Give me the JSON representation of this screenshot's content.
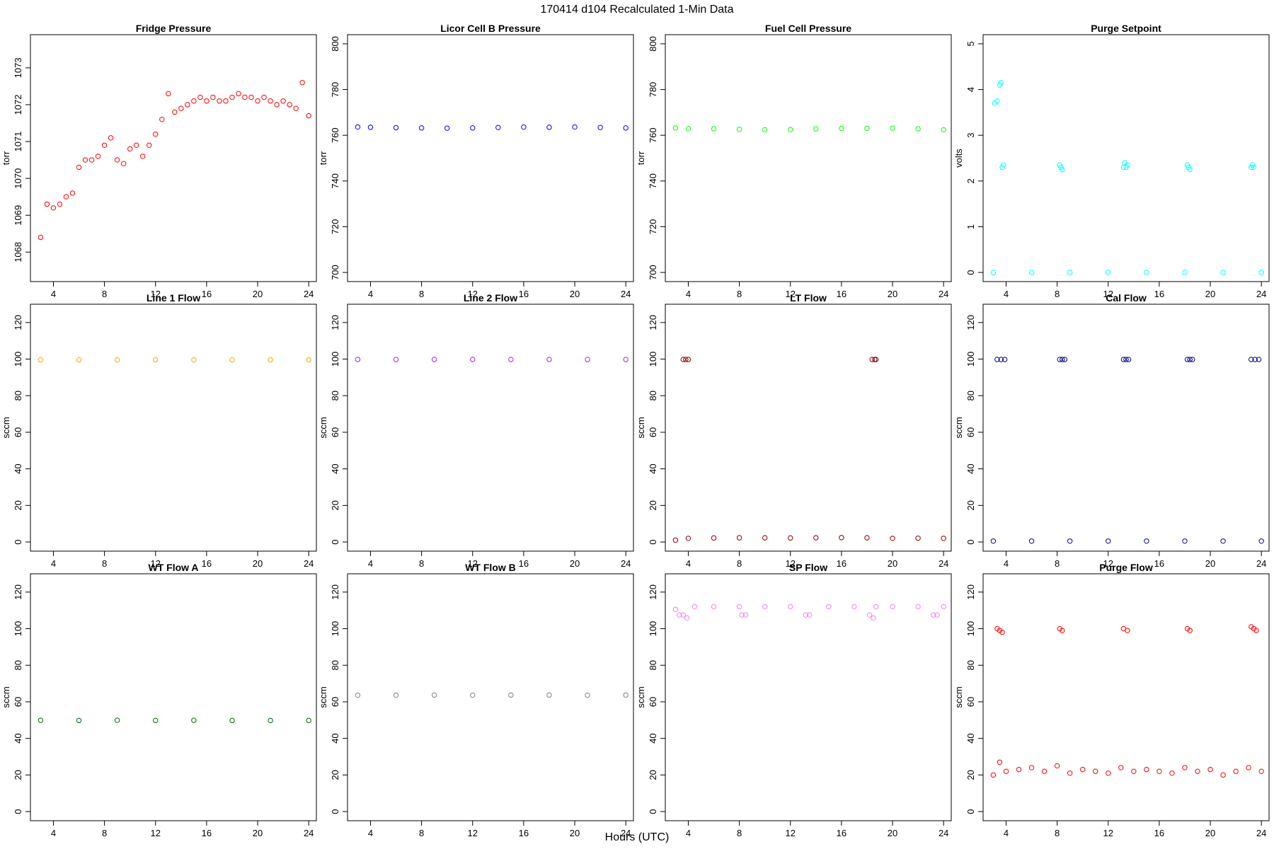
{
  "figure": {
    "title": "170414   d104   Recalculated 1-Min Data",
    "xlabel": "Hours (UTC)"
  },
  "chart_data": [
    {
      "type": "scatter",
      "title": "Fridge Pressure",
      "xlabel": "",
      "ylabel": "torr",
      "xlim": [
        2.2,
        24.6
      ],
      "ylim": [
        1067.2,
        1073.9
      ],
      "xticks": [
        4,
        8,
        12,
        16,
        20,
        24
      ],
      "yticks": [
        1068,
        1069,
        1070,
        1071,
        1072,
        1073
      ],
      "grid": false,
      "color": "#ff0000",
      "marker": "open-circle",
      "series": [
        {
          "x": [
            3.0,
            3.5,
            4.0,
            4.5,
            5.0,
            5.5,
            6.0,
            6.5,
            7.0,
            7.5,
            8.0,
            8.5,
            9.0,
            9.5,
            10.0,
            10.5,
            11.0,
            11.5,
            12.0,
            12.5,
            13.0,
            13.5,
            14.0,
            14.5,
            15.0,
            15.5,
            16.0,
            16.5,
            17.0,
            17.5,
            18.0,
            18.5,
            19.0,
            19.5,
            20.0,
            20.5,
            21.0,
            21.5,
            22.0,
            22.5,
            23.0,
            23.5,
            24.0
          ],
          "y": [
            1068.4,
            1069.3,
            1069.2,
            1069.3,
            1069.5,
            1069.6,
            1070.3,
            1070.5,
            1070.5,
            1070.6,
            1070.9,
            1071.1,
            1070.5,
            1070.4,
            1070.8,
            1070.9,
            1070.6,
            1070.9,
            1071.2,
            1071.6,
            1072.3,
            1071.8,
            1071.9,
            1072.0,
            1072.1,
            1072.2,
            1072.1,
            1072.2,
            1072.1,
            1072.1,
            1072.2,
            1072.3,
            1072.2,
            1072.2,
            1072.1,
            1072.2,
            1072.1,
            1072.0,
            1072.1,
            1072.0,
            1071.9,
            1072.6,
            1071.7
          ]
        }
      ]
    },
    {
      "type": "scatter",
      "title": "Licor Cell B Pressure",
      "xlabel": "",
      "ylabel": "torr",
      "xlim": [
        2.2,
        24.6
      ],
      "ylim": [
        696,
        804
      ],
      "xticks": [
        4,
        8,
        12,
        16,
        20,
        24
      ],
      "yticks": [
        700,
        720,
        740,
        760,
        780,
        800
      ],
      "grid": false,
      "color": "#0000ff",
      "marker": "open-circle",
      "series": [
        {
          "x": [
            3.0,
            4.0,
            6.0,
            8.0,
            10.0,
            12.0,
            14.0,
            16.0,
            18.0,
            20.0,
            22.0,
            24.0
          ],
          "y": [
            763.6,
            763.5,
            763.3,
            763.2,
            763.1,
            763.2,
            763.4,
            763.6,
            763.5,
            763.6,
            763.4,
            763.2
          ]
        }
      ]
    },
    {
      "type": "scatter",
      "title": "Fuel Cell Pressure",
      "xlabel": "",
      "ylabel": "torr",
      "xlim": [
        2.2,
        24.6
      ],
      "ylim": [
        696,
        804
      ],
      "xticks": [
        4,
        8,
        12,
        16,
        20,
        24
      ],
      "yticks": [
        700,
        720,
        740,
        760,
        780,
        800
      ],
      "grid": false,
      "color": "#00ff00",
      "marker": "open-circle",
      "series": [
        {
          "x": [
            3.0,
            4.0,
            6.0,
            8.0,
            10.0,
            12.0,
            14.0,
            16.0,
            18.0,
            20.0,
            22.0,
            24.0
          ],
          "y": [
            763.2,
            762.9,
            762.8,
            762.6,
            762.4,
            762.5,
            762.8,
            763.0,
            763.0,
            763.1,
            762.8,
            762.4
          ]
        }
      ]
    },
    {
      "type": "scatter",
      "title": "Purge Setpoint",
      "xlabel": "",
      "ylabel": "volts",
      "xlim": [
        2.2,
        24.6
      ],
      "ylim": [
        -0.2,
        5.2
      ],
      "xticks": [
        4,
        8,
        12,
        16,
        20,
        24
      ],
      "yticks": [
        0,
        1,
        2,
        3,
        4,
        5
      ],
      "grid": false,
      "color": "#00ffff",
      "marker": "open-circle",
      "series": [
        {
          "x": [
            3.1,
            3.3,
            3.5,
            3.6,
            3.7,
            3.8,
            8.2,
            8.3,
            8.4,
            13.2,
            13.3,
            13.4,
            13.5,
            18.2,
            18.3,
            18.4,
            23.2,
            23.3,
            23.4,
            3.0,
            6.0,
            9.0,
            12.0,
            15.0,
            18.0,
            21.0,
            24.0
          ],
          "y": [
            3.7,
            3.75,
            4.1,
            4.15,
            2.3,
            2.35,
            2.35,
            2.3,
            2.25,
            2.3,
            2.4,
            2.3,
            2.35,
            2.35,
            2.3,
            2.25,
            2.3,
            2.35,
            2.3,
            0,
            0,
            0,
            0,
            0,
            0,
            0,
            0
          ]
        }
      ]
    },
    {
      "type": "scatter",
      "title": "Line 1 Flow",
      "xlabel": "",
      "ylabel": "sccm",
      "xlim": [
        2.2,
        24.6
      ],
      "ylim": [
        -5,
        130
      ],
      "xticks": [
        4,
        8,
        12,
        16,
        20,
        24
      ],
      "yticks": [
        0,
        20,
        40,
        60,
        80,
        100,
        120
      ],
      "grid": false,
      "color": "#ffa500",
      "marker": "open-circle",
      "series": [
        {
          "x": [
            3.0,
            6.0,
            9.0,
            12.0,
            15.0,
            18.0,
            21.0,
            24.0
          ],
          "y": [
            99.6,
            99.6,
            99.6,
            99.6,
            99.6,
            99.6,
            99.6,
            99.6
          ]
        }
      ]
    },
    {
      "type": "scatter",
      "title": "Line 2 Flow",
      "xlabel": "",
      "ylabel": "sccm",
      "xlim": [
        2.2,
        24.6
      ],
      "ylim": [
        -5,
        130
      ],
      "xticks": [
        4,
        8,
        12,
        16,
        20,
        24
      ],
      "yticks": [
        0,
        20,
        40,
        60,
        80,
        100,
        120
      ],
      "grid": false,
      "color": "#a020f0",
      "marker": "open-circle",
      "series": [
        {
          "x": [
            3.0,
            6.0,
            9.0,
            12.0,
            15.0,
            18.0,
            21.0,
            24.0
          ],
          "y": [
            99.8,
            99.8,
            99.8,
            99.8,
            99.8,
            99.8,
            99.8,
            99.8
          ]
        }
      ]
    },
    {
      "type": "scatter",
      "title": "LT Flow",
      "xlabel": "",
      "ylabel": "sccm",
      "xlim": [
        2.2,
        24.6
      ],
      "ylim": [
        -5,
        130
      ],
      "xticks": [
        4,
        8,
        12,
        16,
        20,
        24
      ],
      "yticks": [
        0,
        20,
        40,
        60,
        80,
        100,
        120
      ],
      "grid": false,
      "color": "#8b0000",
      "marker": "open-circle",
      "series": [
        {
          "x": [
            3.6,
            3.8,
            4.0,
            18.4,
            18.6,
            18.7,
            3.0,
            4.0,
            6.0,
            8.0,
            10.0,
            12.0,
            14.0,
            16.0,
            18.0,
            20.0,
            22.0,
            24.0
          ],
          "y": [
            99.8,
            99.8,
            99.8,
            99.8,
            99.8,
            99.8,
            1.0,
            2.0,
            2.2,
            2.3,
            2.3,
            2.2,
            2.3,
            2.4,
            2.3,
            2.0,
            2.1,
            2.0
          ]
        }
      ]
    },
    {
      "type": "scatter",
      "title": "Cal Flow",
      "xlabel": "",
      "ylabel": "sccm",
      "xlim": [
        2.2,
        24.6
      ],
      "ylim": [
        -5,
        130
      ],
      "xticks": [
        4,
        8,
        12,
        16,
        20,
        24
      ],
      "yticks": [
        0,
        20,
        40,
        60,
        80,
        100,
        120
      ],
      "grid": false,
      "color": "#00008b",
      "marker": "open-circle",
      "series": [
        {
          "x": [
            3.3,
            3.6,
            3.9,
            8.2,
            8.4,
            8.6,
            13.2,
            13.4,
            13.6,
            18.2,
            18.4,
            18.6,
            23.2,
            23.5,
            23.8,
            3.0,
            6.0,
            9.0,
            12.0,
            15.0,
            18.0,
            21.0,
            24.0
          ],
          "y": [
            99.8,
            99.8,
            99.8,
            99.8,
            99.8,
            99.8,
            99.8,
            99.8,
            99.8,
            99.8,
            99.8,
            99.8,
            99.8,
            99.8,
            99.8,
            0.5,
            0.5,
            0.5,
            0.5,
            0.5,
            0.5,
            0.5,
            0.5
          ]
        }
      ]
    },
    {
      "type": "scatter",
      "title": "WT Flow A",
      "xlabel": "",
      "ylabel": "sccm",
      "xlim": [
        2.2,
        24.6
      ],
      "ylim": [
        -5,
        130
      ],
      "xticks": [
        4,
        8,
        12,
        16,
        20,
        24
      ],
      "yticks": [
        0,
        20,
        40,
        60,
        80,
        100,
        120
      ],
      "grid": false,
      "color": "#006400",
      "marker": "open-circle",
      "series": [
        {
          "x": [
            3.0,
            6.0,
            9.0,
            12.0,
            15.0,
            18.0,
            21.0,
            24.0
          ],
          "y": [
            49.9,
            49.8,
            49.9,
            49.8,
            49.9,
            49.8,
            49.8,
            49.8
          ]
        }
      ]
    },
    {
      "type": "scatter",
      "title": "WT Flow B",
      "xlabel": "",
      "ylabel": "sccm",
      "xlim": [
        2.2,
        24.6
      ],
      "ylim": [
        -5,
        130
      ],
      "xticks": [
        4,
        8,
        12,
        16,
        20,
        24
      ],
      "yticks": [
        0,
        20,
        40,
        60,
        80,
        100,
        120
      ],
      "grid": false,
      "color": "#808080",
      "marker": "open-circle",
      "series": [
        {
          "x": [
            3.0,
            6.0,
            9.0,
            12.0,
            15.0,
            18.0,
            21.0,
            24.0
          ],
          "y": [
            63.6,
            63.6,
            63.7,
            63.6,
            63.7,
            63.7,
            63.6,
            63.7
          ]
        }
      ]
    },
    {
      "type": "scatter",
      "title": "SP Flow",
      "xlabel": "",
      "ylabel": "sccm",
      "xlim": [
        2.2,
        24.6
      ],
      "ylim": [
        -5,
        130
      ],
      "xticks": [
        4,
        8,
        12,
        16,
        20,
        24
      ],
      "yticks": [
        0,
        20,
        40,
        60,
        80,
        100,
        120
      ],
      "grid": false,
      "color": "#ee82ee",
      "marker": "open-circle",
      "series": [
        {
          "x": [
            3.0,
            3.3,
            3.6,
            3.9,
            4.5,
            6.0,
            8.0,
            8.2,
            8.5,
            10.0,
            12.0,
            13.2,
            13.5,
            15.0,
            17.0,
            18.2,
            18.5,
            18.7,
            20.0,
            22.0,
            23.2,
            23.5,
            24.0
          ],
          "y": [
            110.5,
            107.5,
            107.5,
            105.8,
            112.0,
            112.0,
            112.0,
            107.5,
            107.5,
            112.0,
            112.0,
            107.5,
            107.5,
            112.0,
            112.0,
            107.5,
            105.8,
            112.0,
            112.0,
            112.0,
            107.5,
            107.5,
            112.0
          ]
        }
      ]
    },
    {
      "type": "scatter",
      "title": "Purge Flow",
      "xlabel": "",
      "ylabel": "sccm",
      "xlim": [
        2.2,
        24.6
      ],
      "ylim": [
        -5,
        130
      ],
      "xticks": [
        4,
        8,
        12,
        16,
        20,
        24
      ],
      "yticks": [
        0,
        20,
        40,
        60,
        80,
        100,
        120
      ],
      "grid": false,
      "color": "#ff0000",
      "marker": "open-circle",
      "series": [
        {
          "x": [
            3.3,
            3.5,
            3.7,
            8.2,
            8.4,
            13.2,
            13.5,
            18.2,
            18.4,
            23.2,
            23.4,
            23.6,
            3.0,
            3.5,
            4.0,
            5.0,
            6.0,
            7.0,
            8.0,
            9.0,
            10.0,
            11.0,
            12.0,
            13.0,
            14.0,
            15.0,
            16.0,
            17.0,
            18.0,
            19.0,
            20.0,
            21.0,
            22.0,
            23.0,
            24.0
          ],
          "y": [
            100,
            99,
            98,
            100,
            99,
            100,
            99,
            100,
            99,
            101,
            100,
            99,
            20,
            27,
            22,
            23,
            24,
            22,
            25,
            21,
            23,
            22,
            21,
            24,
            22,
            23,
            22,
            21,
            24,
            22,
            23,
            20,
            22,
            24,
            22
          ]
        }
      ]
    }
  ]
}
